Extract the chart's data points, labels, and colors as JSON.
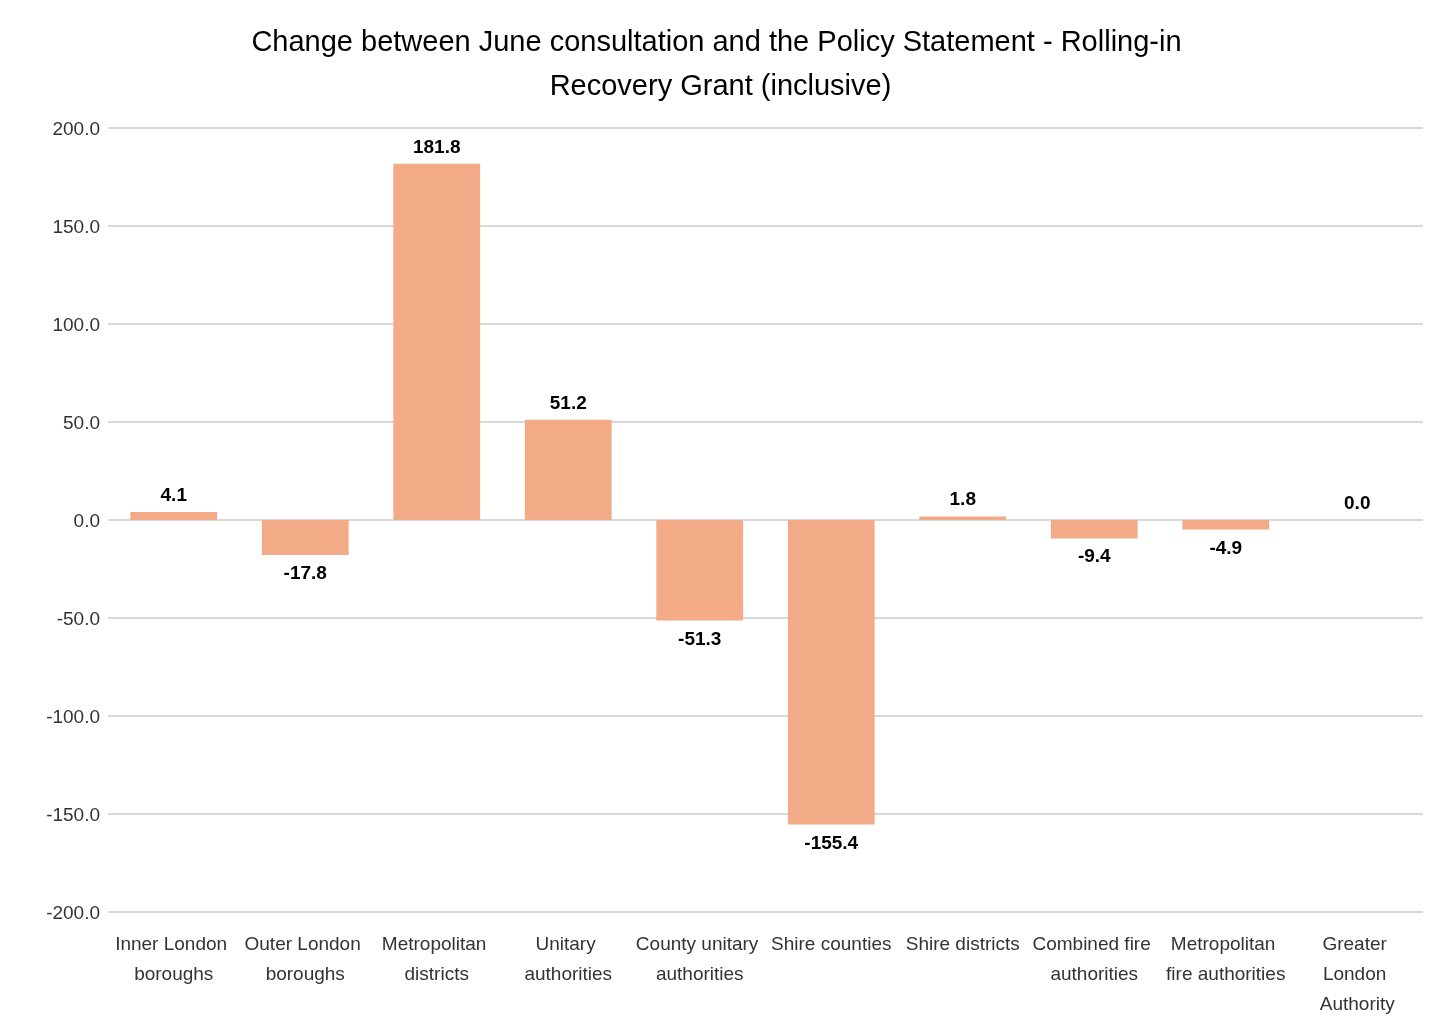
{
  "chart_data": {
    "type": "bar",
    "title": "Change between June consultation and the Policy Statement - Rolling-in Recovery Grant (inclusive)",
    "categories": [
      "Inner London boroughs",
      "Outer London boroughs",
      "Metropolitan districts",
      "Unitary authorities",
      "County unitary authorities",
      "Shire counties",
      "Shire districts",
      "Combined fire authorities",
      "Metropolitan fire authorities",
      "Greater London Authority"
    ],
    "values": [
      4.1,
      -17.8,
      181.8,
      51.2,
      -51.3,
      -155.4,
      1.8,
      -9.4,
      -4.9,
      0.0
    ],
    "value_labels": [
      "4.1",
      "-17.8",
      "181.8",
      "51.2",
      "-51.3",
      "-155.4",
      "1.8",
      "-9.4",
      "-4.9",
      "0.0"
    ],
    "color": "#f2ab86",
    "ylim": [
      -200,
      200
    ],
    "yticks": [
      {
        "value": -200,
        "label": "-200.0"
      },
      {
        "value": -150,
        "label": "-150.0"
      },
      {
        "value": -100,
        "label": "-100.0"
      },
      {
        "value": -50,
        "label": "-50.0"
      },
      {
        "value": 0,
        "label": "0.0"
      },
      {
        "value": 50,
        "label": "50.0"
      },
      {
        "value": 100,
        "label": "100.0"
      },
      {
        "value": 150,
        "label": "150.0"
      },
      {
        "value": 200,
        "label": "200.0"
      }
    ],
    "grid": "y"
  }
}
